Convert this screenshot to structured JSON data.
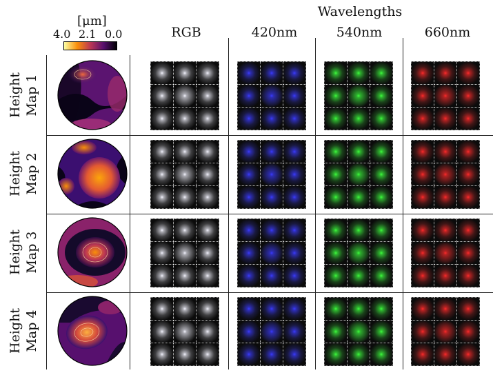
{
  "colorbar": {
    "unit": "[μm]",
    "max_label": "4.0",
    "mid_label": "2.1",
    "min_label": "0.0",
    "gradient": [
      "#fcffa4",
      "#f98e09",
      "#bc3754",
      "#57106e",
      "#000004"
    ]
  },
  "header": {
    "group_title": "Wavelengths",
    "columns": [
      "RGB",
      "420nm",
      "540nm",
      "660nm"
    ]
  },
  "rows": [
    {
      "line1": "Height",
      "line2": "Map 1"
    },
    {
      "line1": "Height",
      "line2": "Map 2"
    },
    {
      "line1": "Height",
      "line2": "Map 3"
    },
    {
      "line1": "Height",
      "line2": "Map 4"
    }
  ],
  "psf_colors": {
    "RGB": "#f4f4ff",
    "420nm": "#3a3aff",
    "540nm": "#3cff3c",
    "660nm": "#ff2a2a"
  }
}
